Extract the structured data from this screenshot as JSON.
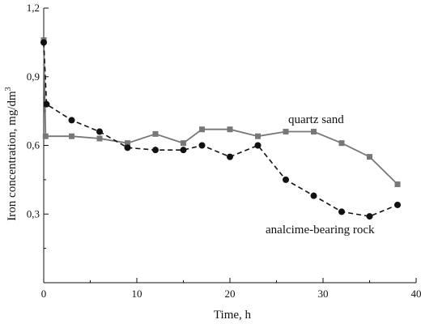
{
  "chart_data": {
    "type": "line",
    "title": "",
    "xlabel": "Time, h",
    "ylabel_main": "Iron concentration, mg/dm",
    "ylabel_sup": "3",
    "xlim": [
      0,
      40
    ],
    "ylim": [
      0,
      1.2
    ],
    "xticks": [
      0,
      10,
      20,
      30,
      40
    ],
    "xtick_labels": [
      "0",
      "10",
      "20",
      "30",
      "40"
    ],
    "yticks": [
      0.3,
      0.6,
      0.9,
      1.2
    ],
    "ytick_labels": [
      "0,3",
      "0,6",
      "0,9",
      "1,2"
    ],
    "grid": false,
    "series": [
      {
        "name": "quartz sand",
        "marker": "square",
        "line_style": "solid",
        "color": "#777777",
        "x": [
          0,
          0.2,
          3,
          6,
          9,
          12,
          15,
          17,
          20,
          23,
          26,
          29,
          32,
          35,
          38
        ],
        "y": [
          1.06,
          0.64,
          0.64,
          0.63,
          0.61,
          0.65,
          0.61,
          0.67,
          0.67,
          0.64,
          0.66,
          0.66,
          0.61,
          0.55,
          0.43
        ]
      },
      {
        "name": "analcime-bearing rock",
        "marker": "circle",
        "line_style": "dashed",
        "color": "#111111",
        "x": [
          0,
          0.3,
          3,
          6,
          9,
          12,
          15,
          17,
          20,
          23,
          26,
          29,
          32,
          35,
          38
        ],
        "y": [
          1.05,
          0.78,
          0.71,
          0.66,
          0.59,
          0.58,
          0.58,
          0.6,
          0.55,
          0.6,
          0.45,
          0.38,
          0.31,
          0.29,
          0.34
        ]
      }
    ],
    "annotations": [
      "quartz sand",
      "analcime-bearing rock"
    ]
  }
}
